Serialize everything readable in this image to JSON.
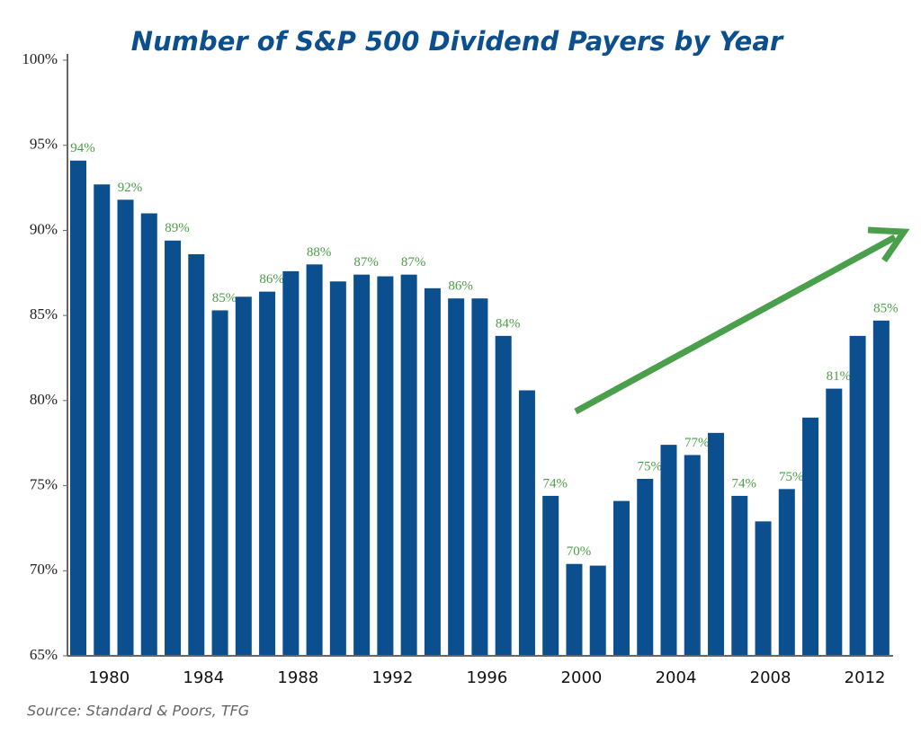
{
  "chart_data": {
    "type": "bar",
    "title": "Number of S&P 500 Dividend Payers by Year",
    "source": "Source: Standard & Poors, TFG",
    "categories": [
      null,
      "1980",
      null,
      null,
      null,
      "1984",
      null,
      null,
      null,
      "1988",
      null,
      null,
      null,
      "1992",
      null,
      null,
      null,
      "1996",
      null,
      null,
      null,
      "2000",
      null,
      null,
      null,
      "2004",
      null,
      null,
      null,
      "2008",
      null,
      null,
      null,
      "2012",
      null
    ],
    "values": [
      94.1,
      92.7,
      91.8,
      91.0,
      89.4,
      88.6,
      85.3,
      86.1,
      86.4,
      87.6,
      88.0,
      87.0,
      87.4,
      87.3,
      87.4,
      86.6,
      86.0,
      86.0,
      83.8,
      80.6,
      74.4,
      70.4,
      70.3,
      74.1,
      75.4,
      77.4,
      76.8,
      78.1,
      74.4,
      72.9,
      74.8,
      79.0,
      80.7,
      83.8,
      84.7
    ],
    "value_labels": [
      "94%",
      null,
      "92%",
      null,
      "89%",
      null,
      "85%",
      null,
      "86%",
      null,
      "88%",
      null,
      "87%",
      null,
      "87%",
      null,
      "86%",
      null,
      "84%",
      null,
      "74%",
      "70%",
      null,
      null,
      "75%",
      null,
      "77%",
      null,
      "74%",
      null,
      "75%",
      null,
      "81%",
      null,
      "85%"
    ],
    "color": "#0b4f8f",
    "label_color": "#4a9e45",
    "ylim": [
      65,
      100
    ],
    "yticks": [
      {
        "value": 65,
        "label": "65%"
      },
      {
        "value": 70,
        "label": "70%"
      },
      {
        "value": 75,
        "label": "75%"
      },
      {
        "value": 80,
        "label": "80%"
      },
      {
        "value": 85,
        "label": "85%"
      },
      {
        "value": 90,
        "label": "90%"
      },
      {
        "value": 95,
        "label": "95%"
      },
      {
        "value": 100,
        "label": "100%"
      }
    ],
    "grid": false
  }
}
